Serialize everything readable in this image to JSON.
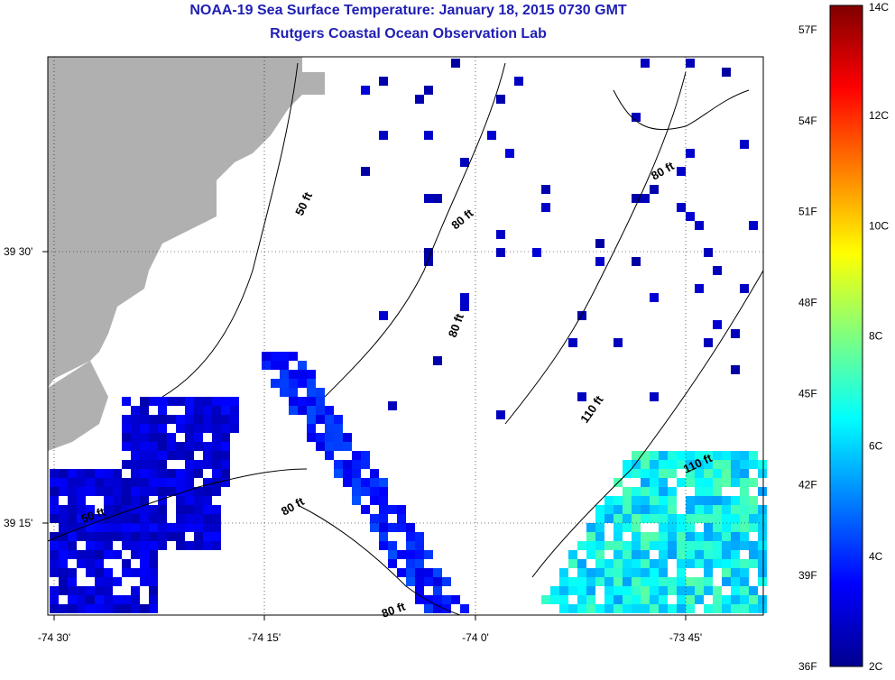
{
  "title": "NOAA-19 Sea Surface Temperature:  January 18, 2015 0730 GMT",
  "subtitle": "Rutgers Coastal Ocean Observation Lab",
  "chart_data": {
    "type": "heatmap",
    "title": "NOAA-19 Sea Surface Temperature:  January 18, 2015 0730 GMT",
    "subtitle": "Rutgers Coastal Ocean Observation Lab",
    "x_ticks": [
      "-74 30'",
      "-74 15'",
      "-74 0'",
      "-73 45'"
    ],
    "y_ticks": [
      "39 30'",
      "39 15'"
    ],
    "colorbar": {
      "celsius_labels": [
        "2C",
        "4C",
        "6C",
        "8C",
        "10C",
        "12C",
        "14C"
      ],
      "fahrenheit_labels": [
        "36F",
        "39F",
        "42F",
        "45F",
        "48F",
        "51F",
        "54F",
        "57F"
      ],
      "range_c": [
        2,
        14
      ],
      "colormap": "jet"
    },
    "depth_contours": [
      "50 ft",
      "50 ft",
      "80 ft",
      "80 ft",
      "80 ft",
      "80 ft",
      "80 ft",
      "110 ft",
      "110 ft"
    ],
    "land_color": "#b0b0b0",
    "grid": true,
    "regions_sst_c": [
      {
        "area": "southwest",
        "sst_c": 3.0
      },
      {
        "area": "central channel",
        "sst_c": 3.8
      },
      {
        "area": "southeast offshore",
        "sst_c": 6.0
      },
      {
        "area": "scattered north",
        "sst_c": 2.6
      }
    ]
  }
}
